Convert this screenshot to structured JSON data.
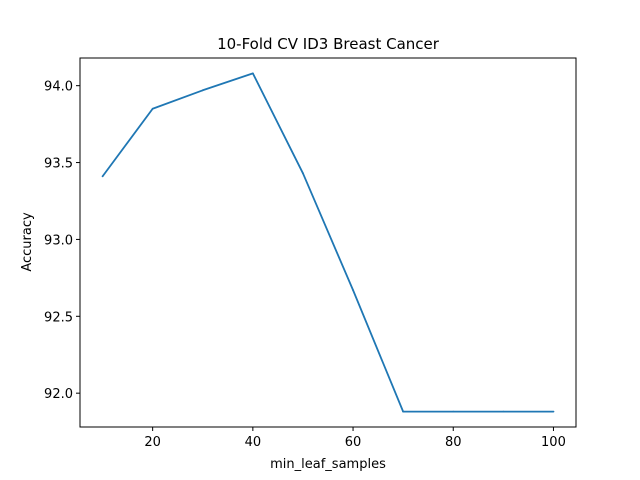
{
  "chart_data": {
    "type": "line",
    "title": "10-Fold CV  ID3 Breast Cancer",
    "xlabel": "min_leaf_samples",
    "ylabel": "Accuracy",
    "xlim": [
      5.5,
      104.5
    ],
    "ylim": [
      91.78,
      94.18
    ],
    "x_ticks": [
      20,
      40,
      60,
      80,
      100
    ],
    "y_ticks": [
      92.0,
      92.5,
      93.0,
      93.5,
      94.0
    ],
    "x_tick_labels": [
      "20",
      "40",
      "60",
      "80",
      "100"
    ],
    "y_tick_labels": [
      "92.0",
      "92.5",
      "93.0",
      "93.5",
      "94.0"
    ],
    "grid": false,
    "series": [
      {
        "color": "#1f77b4",
        "x": [
          10,
          20,
          30,
          40,
          50,
          60,
          70,
          80,
          90,
          100
        ],
        "y": [
          93.41,
          93.85,
          93.97,
          94.08,
          93.43,
          92.67,
          91.88,
          91.88,
          91.88,
          91.88
        ]
      }
    ]
  }
}
